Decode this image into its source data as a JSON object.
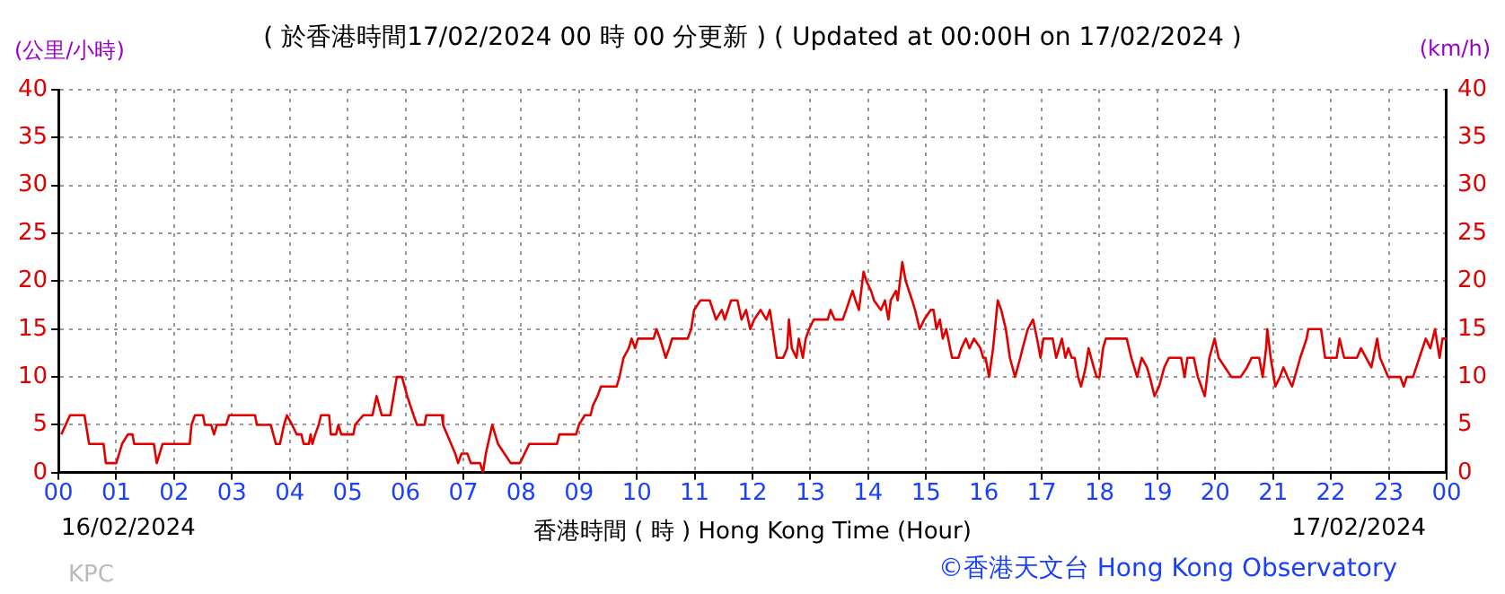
{
  "chart_data": {
    "type": "line",
    "title": "( 於香港時間17/02/2024 00 時 00 分更新 ) ( Updated at 00:00H on 17/02/2024 )",
    "xlabel": "香港時間 ( 時 ) Hong Kong Time (Hour)",
    "ylabel": "(公里/小時)",
    "y2label": "(km/h)",
    "annotations": [
      "16/02/2024",
      "17/02/2024",
      "KPC",
      "©香港天文台 Hong Kong Observatory"
    ],
    "xlim": [
      0,
      24
    ],
    "xticks": [
      {
        "value": 0,
        "label": "00"
      },
      {
        "value": 1,
        "label": "01"
      },
      {
        "value": 2,
        "label": "02"
      },
      {
        "value": 3,
        "label": "03"
      },
      {
        "value": 4,
        "label": "04"
      },
      {
        "value": 5,
        "label": "05"
      },
      {
        "value": 6,
        "label": "06"
      },
      {
        "value": 7,
        "label": "07"
      },
      {
        "value": 8,
        "label": "08"
      },
      {
        "value": 9,
        "label": "09"
      },
      {
        "value": 10,
        "label": "10"
      },
      {
        "value": 11,
        "label": "11"
      },
      {
        "value": 12,
        "label": "12"
      },
      {
        "value": 13,
        "label": "13"
      },
      {
        "value": 14,
        "label": "14"
      },
      {
        "value": 15,
        "label": "15"
      },
      {
        "value": 16,
        "label": "16"
      },
      {
        "value": 17,
        "label": "17"
      },
      {
        "value": 18,
        "label": "18"
      },
      {
        "value": 19,
        "label": "19"
      },
      {
        "value": 20,
        "label": "20"
      },
      {
        "value": 21,
        "label": "21"
      },
      {
        "value": 22,
        "label": "22"
      },
      {
        "value": 23,
        "label": "23"
      },
      {
        "value": 24,
        "label": "00"
      }
    ],
    "ylim": [
      0,
      40
    ],
    "yticks": [
      0,
      5,
      10,
      15,
      20,
      25,
      30,
      35,
      40
    ],
    "y2lim": [
      0,
      40
    ],
    "y2ticks": [
      0,
      5,
      10,
      15,
      20,
      25,
      30,
      35,
      40
    ],
    "grid": true,
    "legend": false,
    "marker": "none",
    "line_style": "solid",
    "series": [
      {
        "color": "#e00000",
        "x": [
          0.05,
          0.2,
          0.45,
          0.53,
          0.78,
          0.82,
          1.0,
          1.1,
          1.2,
          1.28,
          1.31,
          1.65,
          1.7,
          1.75,
          1.8,
          2.27,
          2.3,
          2.36,
          2.5,
          2.53,
          2.64,
          2.69,
          2.74,
          2.9,
          2.95,
          3.4,
          3.43,
          3.67,
          3.76,
          3.83,
          3.9,
          3.95,
          4.04,
          4.12,
          4.2,
          4.24,
          4.33,
          4.36,
          4.39,
          4.44,
          4.5,
          4.54,
          4.68,
          4.71,
          4.8,
          4.84,
          4.89,
          5.1,
          5.13,
          5.27,
          5.43,
          5.5,
          5.59,
          5.74,
          5.85,
          5.94,
          6.03,
          6.14,
          6.2,
          6.33,
          6.36,
          6.63,
          6.65,
          6.86,
          6.91,
          6.97,
          7.07,
          7.13,
          7.29,
          7.34,
          7.39,
          7.5,
          7.6,
          7.71,
          7.82,
          7.98,
          8.14,
          8.62,
          8.66,
          8.95,
          9.0,
          9.1,
          9.2,
          9.24,
          9.32,
          9.38,
          9.52,
          9.65,
          9.7,
          9.77,
          9.86,
          9.91,
          9.97,
          10.02,
          10.29,
          10.34,
          10.4,
          10.5,
          10.56,
          10.61,
          10.72,
          10.88,
          10.94,
          10.99,
          11.1,
          11.26,
          11.37,
          11.47,
          11.52,
          11.63,
          11.74,
          11.81,
          11.89,
          11.96,
          12.03,
          12.14,
          12.24,
          12.3,
          12.35,
          12.42,
          12.53,
          12.6,
          12.63,
          12.68,
          12.76,
          12.8,
          12.87,
          12.92,
          12.98,
          13.06,
          13.3,
          13.35,
          13.42,
          13.56,
          13.62,
          13.73,
          13.78,
          13.84,
          13.92,
          13.97,
          14.05,
          14.1,
          14.22,
          14.29,
          14.35,
          14.39,
          14.48,
          14.51,
          14.59,
          14.65,
          14.76,
          14.81,
          14.89,
          14.97,
          15.08,
          15.13,
          15.18,
          15.24,
          15.29,
          15.35,
          15.45,
          15.56,
          15.61,
          15.69,
          15.75,
          15.83,
          15.94,
          15.99,
          16.03,
          16.09,
          16.16,
          16.24,
          16.3,
          16.38,
          16.45,
          16.54,
          16.63,
          16.67,
          16.76,
          16.85,
          16.92,
          16.98,
          17.03,
          17.19,
          17.25,
          17.35,
          17.41,
          17.46,
          17.52,
          17.57,
          17.63,
          17.68,
          17.76,
          17.81,
          17.9,
          17.95,
          18.0,
          18.06,
          18.11,
          18.47,
          18.55,
          18.6,
          18.65,
          18.73,
          18.82,
          18.87,
          18.95,
          19.03,
          19.12,
          19.2,
          19.41,
          19.47,
          19.52,
          19.63,
          19.7,
          19.82,
          19.9,
          19.99,
          20.06,
          20.17,
          20.28,
          20.44,
          20.55,
          20.63,
          20.76,
          20.82,
          20.88,
          20.9,
          20.96,
          21.04,
          21.12,
          21.18,
          21.25,
          21.33,
          21.47,
          21.58,
          21.61,
          21.83,
          21.9,
          22.1,
          22.15,
          22.23,
          22.45,
          22.52,
          22.61,
          22.7,
          22.8,
          22.85,
          22.99,
          23.2,
          23.26,
          23.31,
          23.42,
          23.53,
          23.64,
          23.72,
          23.8,
          23.88,
          23.93,
          24.0
        ],
        "values": [
          4,
          6,
          6,
          3,
          3,
          1,
          1,
          3,
          4,
          4,
          3,
          3,
          1,
          2,
          3,
          3,
          5,
          6,
          6,
          5,
          5,
          4,
          5,
          5,
          6,
          6,
          5,
          5,
          3,
          3,
          5,
          6,
          5,
          4,
          4,
          3,
          3,
          4,
          3,
          4,
          5,
          6,
          6,
          4,
          4,
          5,
          4,
          4,
          5,
          6,
          6,
          8,
          6,
          6,
          10,
          10,
          8,
          6,
          5,
          5,
          6,
          6,
          5,
          2,
          1,
          2,
          2,
          1,
          1,
          0,
          2,
          5,
          3,
          2,
          1,
          1,
          3,
          3,
          4,
          4,
          5,
          6,
          6,
          7,
          8,
          9,
          9,
          9,
          10,
          12,
          13,
          14,
          13,
          14,
          14,
          15,
          14,
          12,
          13,
          14,
          14,
          14,
          15,
          17,
          18,
          18,
          16,
          17,
          16,
          18,
          18,
          16,
          17,
          15,
          16,
          17,
          16,
          17,
          15,
          12,
          12,
          13,
          16,
          13,
          12,
          14,
          12,
          14,
          15,
          16,
          16,
          17,
          16,
          16,
          17,
          19,
          18,
          17,
          21,
          20,
          19,
          18,
          17,
          18,
          16,
          18,
          19,
          18,
          22,
          20,
          18,
          17,
          15,
          16,
          17,
          17,
          15,
          16,
          14,
          15,
          12,
          12,
          13,
          14,
          13,
          14,
          13,
          12,
          12,
          10,
          13,
          18,
          17,
          15,
          12,
          10,
          12,
          13,
          15,
          16,
          14,
          12,
          14,
          14,
          12,
          14,
          12,
          13,
          12,
          12,
          10,
          9,
          11,
          13,
          11,
          10,
          10,
          13,
          14,
          14,
          12,
          11,
          10,
          12,
          11,
          10,
          8,
          9,
          11,
          12,
          12,
          10,
          12,
          12,
          10,
          8,
          12,
          14,
          12,
          11,
          10,
          10,
          11,
          12,
          12,
          10,
          13,
          15,
          12,
          9,
          10,
          11,
          10,
          9,
          12,
          14,
          15,
          15,
          12,
          12,
          14,
          12,
          12,
          13,
          12,
          11,
          14,
          12,
          10,
          10,
          9,
          10,
          10,
          12,
          14,
          13,
          15,
          12,
          14,
          14
        ]
      }
    ]
  }
}
